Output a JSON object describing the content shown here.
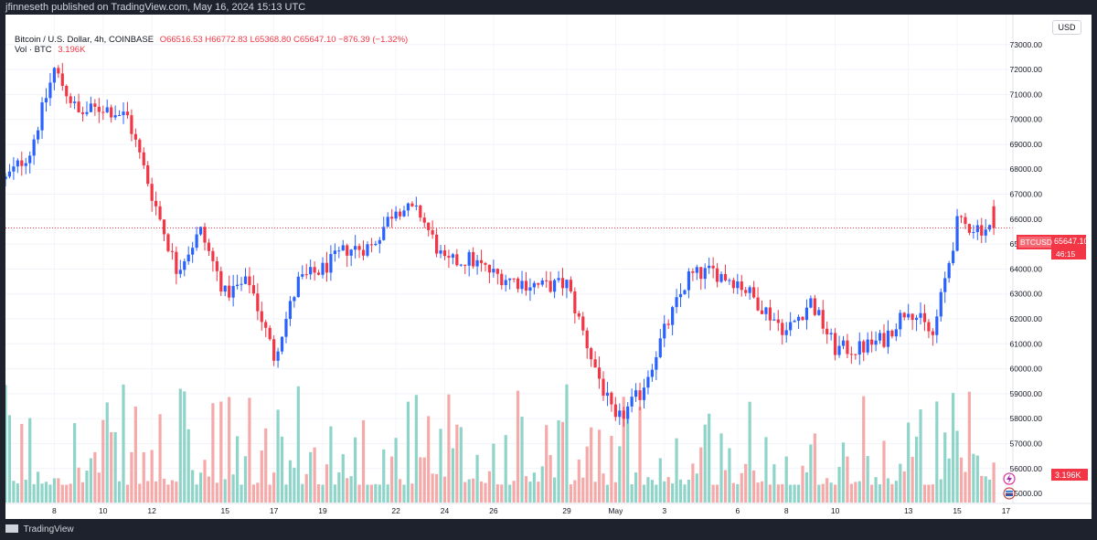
{
  "header": {
    "publisher": "jfinneseth published on TradingView.com, May 16, 2024 15:13 UTC"
  },
  "legend": {
    "symbol": "Bitcoin / U.S. Dollar, 4h, COINBASE",
    "ohlc": "O66516.53 H66772.83 L65368.80 C65647.10 −876.39 (−1.32%)",
    "volume_label": "Vol · BTC",
    "volume_value": "3.196K"
  },
  "currency_button": "USD",
  "price_badge": {
    "symbol": "BTCUSD",
    "price": "65647.10",
    "countdown": "46:15"
  },
  "volume_badge": "3.196K",
  "footer": {
    "brand": "TradingView"
  },
  "colors": {
    "up": "#2962ff",
    "down": "#f23645",
    "vol_up": "#8fd4c8",
    "vol_down": "#f5a9a9",
    "last_line": "#f23645"
  },
  "chart_data": {
    "type": "candlestick",
    "y_axis_ticks": [
      "73000.00",
      "72000.00",
      "71000.00",
      "70000.00",
      "69000.00",
      "68000.00",
      "67000.00",
      "66000.00",
      "65000.00",
      "64000.00",
      "63000.00",
      "62000.00",
      "61000.00",
      "60000.00",
      "59000.00",
      "58000.00",
      "57000.00",
      "56000.00",
      "55000.00"
    ],
    "ylim": [
      54600,
      74200
    ],
    "x_ticks": [
      {
        "label": "8",
        "date": "2024-04-08"
      },
      {
        "label": "10",
        "date": "2024-04-10"
      },
      {
        "label": "12",
        "date": "2024-04-12"
      },
      {
        "label": "15",
        "date": "2024-04-15"
      },
      {
        "label": "17",
        "date": "2024-04-17"
      },
      {
        "label": "19",
        "date": "2024-04-19"
      },
      {
        "label": "22",
        "date": "2024-04-22"
      },
      {
        "label": "24",
        "date": "2024-04-24"
      },
      {
        "label": "26",
        "date": "2024-04-26"
      },
      {
        "label": "29",
        "date": "2024-04-29"
      },
      {
        "label": "May",
        "date": "2024-05-01"
      },
      {
        "label": "3",
        "date": "2024-05-03"
      },
      {
        "label": "6",
        "date": "2024-05-06"
      },
      {
        "label": "8",
        "date": "2024-05-08"
      },
      {
        "label": "10",
        "date": "2024-05-10"
      },
      {
        "label": "13",
        "date": "2024-05-13"
      },
      {
        "label": "15",
        "date": "2024-05-15"
      },
      {
        "label": "17",
        "date": "2024-05-17"
      }
    ],
    "anchors": [
      {
        "date": "2024-04-06",
        "close": 67600
      },
      {
        "date": "2024-04-07",
        "close": 68700
      },
      {
        "date": "2024-04-08",
        "close": 72000
      },
      {
        "date": "2024-04-09",
        "close": 70200
      },
      {
        "date": "2024-04-10",
        "close": 70500
      },
      {
        "date": "2024-04-11",
        "close": 70100
      },
      {
        "date": "2024-04-12",
        "close": 67000
      },
      {
        "date": "2024-04-13",
        "close": 64000
      },
      {
        "date": "2024-04-14",
        "close": 65500
      },
      {
        "date": "2024-04-15",
        "close": 63000
      },
      {
        "date": "2024-04-16",
        "close": 63500
      },
      {
        "date": "2024-04-17",
        "close": 60500
      },
      {
        "date": "2024-04-18",
        "close": 63500
      },
      {
        "date": "2024-04-19",
        "close": 64000
      },
      {
        "date": "2024-04-20",
        "close": 64800
      },
      {
        "date": "2024-04-21",
        "close": 64900
      },
      {
        "date": "2024-04-22",
        "close": 66500
      },
      {
        "date": "2024-04-23",
        "close": 66200
      },
      {
        "date": "2024-04-24",
        "close": 64200
      },
      {
        "date": "2024-04-25",
        "close": 64400
      },
      {
        "date": "2024-04-26",
        "close": 63800
      },
      {
        "date": "2024-04-27",
        "close": 63500
      },
      {
        "date": "2024-04-28",
        "close": 63300
      },
      {
        "date": "2024-04-29",
        "close": 63400
      },
      {
        "date": "2024-04-30",
        "close": 60500
      },
      {
        "date": "2024-05-01",
        "close": 57800
      },
      {
        "date": "2024-05-02",
        "close": 59000
      },
      {
        "date": "2024-05-03",
        "close": 61500
      },
      {
        "date": "2024-05-04",
        "close": 63700
      },
      {
        "date": "2024-05-05",
        "close": 63900
      },
      {
        "date": "2024-05-06",
        "close": 63500
      },
      {
        "date": "2024-05-07",
        "close": 62500
      },
      {
        "date": "2024-05-08",
        "close": 61500
      },
      {
        "date": "2024-05-09",
        "close": 62700
      },
      {
        "date": "2024-05-10",
        "close": 60800
      },
      {
        "date": "2024-05-11",
        "close": 60800
      },
      {
        "date": "2024-05-12",
        "close": 61200
      },
      {
        "date": "2024-05-13",
        "close": 62500
      },
      {
        "date": "2024-05-14",
        "close": 61300
      },
      {
        "date": "2024-05-15",
        "close": 65800
      },
      {
        "date": "2024-05-16",
        "close": 65647.1
      }
    ],
    "last_price": 65647.1
  }
}
